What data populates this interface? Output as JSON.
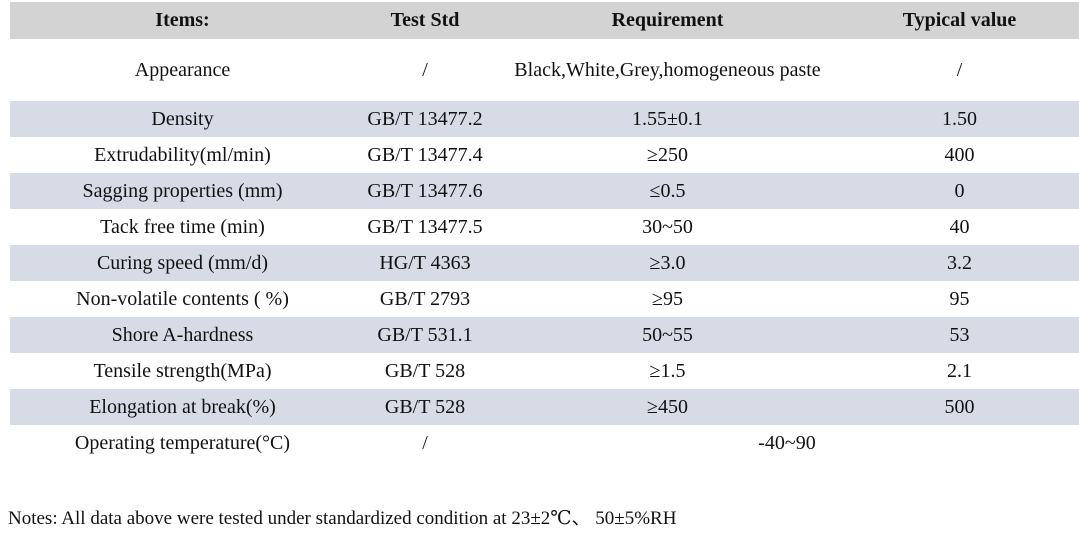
{
  "table": {
    "columns": [
      "Items:",
      "Test Std",
      "Requirement",
      "Typical value"
    ],
    "rows": [
      {
        "item": "Appearance",
        "std": "/",
        "req": "Black,White,Grey,homogeneous paste",
        "typ": "/"
      },
      {
        "item": "Density",
        "std": "GB/T 13477.2",
        "req": "1.55±0.1",
        "typ": "1.50"
      },
      {
        "item": "Extrudability(ml/min)",
        "std": "GB/T 13477.4",
        "req": "≥250",
        "typ": "400"
      },
      {
        "item": "Sagging properties (mm)",
        "std": "GB/T 13477.6",
        "req": "≤0.5",
        "typ": "0"
      },
      {
        "item": "Tack free time (min)",
        "std": "GB/T 13477.5",
        "req": "30~50",
        "typ": "40"
      },
      {
        "item": "Curing speed (mm/d)",
        "std": "HG/T 4363",
        "req": "≥3.0",
        "typ": "3.2"
      },
      {
        "item": "Non-volatile contents ( %)",
        "std": "GB/T 2793",
        "req": "≥95",
        "typ": "95"
      },
      {
        "item": "Shore A-hardness",
        "std": "GB/T 531.1",
        "req": "50~55",
        "typ": "53"
      },
      {
        "item": "Tensile strength(MPa)",
        "std": "GB/T 528",
        "req": "≥1.5",
        "typ": "2.1"
      },
      {
        "item": "Elongation at break(%)",
        "std": "GB/T 528",
        "req": "≥450",
        "typ": "500"
      },
      {
        "item": "Operating temperature(°C)",
        "std": "/",
        "req": "-40~90",
        "typ": "",
        "merged": true
      }
    ],
    "colors": {
      "header_bg": "#d3d3d3",
      "band_bg": "#d6dbe5"
    }
  },
  "notes": "Notes: All data above were tested under standardized condition at 23±2℃、 50±5%RH"
}
